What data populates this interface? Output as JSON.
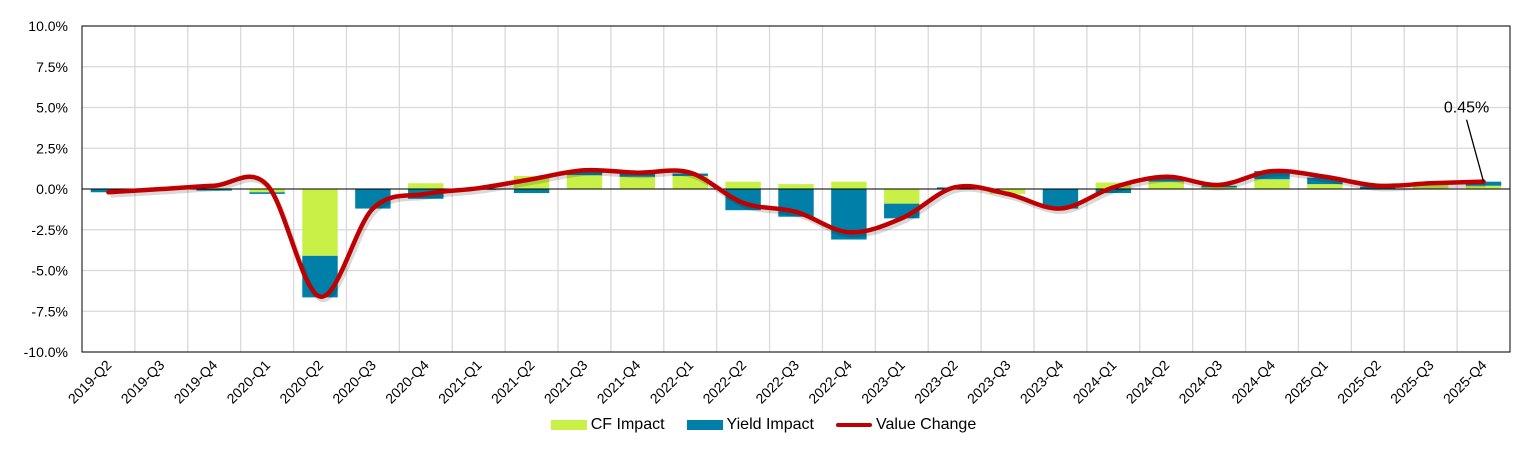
{
  "chart_data": {
    "type": "bar",
    "stacked": true,
    "categories": [
      "2019-Q2",
      "2019-Q3",
      "2019-Q4",
      "2020-Q1",
      "2020-Q2",
      "2020-Q3",
      "2020-Q4",
      "2021-Q1",
      "2021-Q2",
      "2021-Q3",
      "2021-Q4",
      "2022-Q1",
      "2022-Q2",
      "2022-Q3",
      "2022-Q4",
      "2023-Q1",
      "2023-Q2",
      "2023-Q3",
      "2023-Q4",
      "2024-Q1",
      "2024-Q2",
      "2024-Q3",
      "2024-Q4",
      "2025-Q1",
      "2025-Q2",
      "2025-Q3",
      "2025-Q4"
    ],
    "series": [
      {
        "name": "CF Impact",
        "type": "bar",
        "color": "#c8f046",
        "values": [
          0,
          0,
          0.05,
          -0.2,
          -4.1,
          0,
          0.35,
          0,
          0.8,
          0.85,
          0.75,
          0.8,
          0.45,
          0.3,
          0.45,
          -0.9,
          0,
          -0.3,
          0,
          0.4,
          0.45,
          0.1,
          0.6,
          0.3,
          0,
          0.3,
          0.2
        ]
      },
      {
        "name": "Yield Impact",
        "type": "bar",
        "color": "#0080a8",
        "values": [
          -0.2,
          0,
          -0.1,
          -0.1,
          -2.55,
          -1.2,
          -0.6,
          -0.05,
          -0.25,
          0.2,
          0.25,
          0.15,
          -1.3,
          -1.7,
          -3.1,
          -0.9,
          0.1,
          0,
          -1.2,
          -0.25,
          0.25,
          0.1,
          0.5,
          0.4,
          0.15,
          0.05,
          0.25
        ]
      },
      {
        "name": "Value Change",
        "type": "line",
        "color": "#c00000",
        "values": [
          -0.2,
          0,
          0.2,
          0.25,
          -6.6,
          -1.2,
          -0.3,
          0.05,
          0.6,
          1.15,
          1.0,
          1.0,
          -0.85,
          -1.4,
          -2.65,
          -1.8,
          0.1,
          -0.3,
          -1.2,
          0.1,
          0.75,
          0.25,
          1.1,
          0.75,
          0.2,
          0.35,
          0.45
        ]
      }
    ],
    "ylim": [
      -10,
      10
    ],
    "yticks": [
      "10.0%",
      "7.5%",
      "5.0%",
      "2.5%",
      "0.0%",
      "-2.5%",
      "-5.0%",
      "-7.5%",
      "-10.0%"
    ],
    "ytick_values": [
      10,
      7.5,
      5,
      2.5,
      0,
      -2.5,
      -5,
      -7.5,
      -10
    ],
    "grid": true,
    "legend_position": "bottom",
    "annotation": {
      "category": "2025-Q4",
      "text": "0.45%"
    }
  }
}
